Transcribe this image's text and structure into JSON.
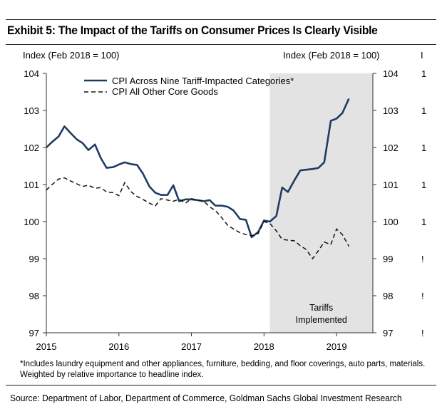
{
  "exhibit_title": "Exhibit 5: The Impact of the Tariffs on Consumer Prices Is Clearly Visible",
  "footnote": "*Includes laundry equipment and other appliances, furniture, bedding, and floor coverings, auto parts, materials. Weighted by relative importance to headline index.",
  "source": "Source: Department of Labor, Department of Commerce, Goldman Sachs Global Investment Research",
  "colors": {
    "series_primary": "#1f3b63",
    "series_secondary": "#111111",
    "shade": "#e3e3e3"
  },
  "chart_data": {
    "type": "line",
    "title": "Exhibit 5: The Impact of the Tariffs on Consumer Prices Is Clearly Visible",
    "ylabel_left": "Index (Feb 2018 = 100)",
    "ylabel_right": "Index (Feb 2018 = 100)",
    "ylabel_right_clipped": "I",
    "xlim": [
      2015.0,
      2019.5
    ],
    "ylim": [
      97,
      104
    ],
    "yticks": [
      97,
      98,
      99,
      100,
      101,
      102,
      103,
      104
    ],
    "yticks_clipped_right": [
      "1",
      "1",
      "1",
      "1",
      "1",
      "!",
      "!",
      "!"
    ],
    "xticks": [
      2015,
      2016,
      2017,
      2018,
      2019
    ],
    "xtick_labels": [
      "2015",
      "2016",
      "2017",
      "2018",
      "2019"
    ],
    "grid": false,
    "legend": "top-left",
    "shaded_region": {
      "x_start": 2018.08,
      "x_end": 2019.5,
      "label_line1": "Tariffs",
      "label_line2": "Implemented"
    },
    "series": [
      {
        "name": "CPI Across Nine Tariff-Impacted Categories*",
        "style": "solid",
        "x": [
          2015.0,
          2015.08,
          2015.17,
          2015.25,
          2015.33,
          2015.42,
          2015.5,
          2015.58,
          2015.67,
          2015.75,
          2015.83,
          2015.92,
          2016.0,
          2016.08,
          2016.17,
          2016.25,
          2016.33,
          2016.42,
          2016.5,
          2016.58,
          2016.67,
          2016.75,
          2016.83,
          2016.92,
          2017.0,
          2017.08,
          2017.17,
          2017.25,
          2017.33,
          2017.42,
          2017.5,
          2017.58,
          2017.67,
          2017.75,
          2017.83,
          2017.92,
          2018.0,
          2018.08,
          2018.17,
          2018.25,
          2018.33,
          2018.42,
          2018.5,
          2018.58,
          2018.67,
          2018.75,
          2018.83,
          2018.92,
          2019.0,
          2019.08,
          2019.17
        ],
        "values": [
          102.0,
          102.15,
          102.3,
          102.57,
          102.4,
          102.22,
          102.12,
          101.93,
          102.08,
          101.72,
          101.45,
          101.47,
          101.54,
          101.6,
          101.55,
          101.53,
          101.3,
          100.95,
          100.78,
          100.72,
          100.72,
          100.98,
          100.55,
          100.6,
          100.6,
          100.58,
          100.55,
          100.58,
          100.43,
          100.43,
          100.4,
          100.3,
          100.07,
          100.05,
          99.58,
          99.72,
          100.03,
          100.0,
          100.15,
          100.92,
          100.8,
          101.12,
          101.38,
          101.4,
          101.42,
          101.45,
          101.6,
          102.72,
          102.78,
          102.93,
          103.32
        ]
      },
      {
        "name": "CPI All Other Core Goods",
        "style": "dashed",
        "x": [
          2015.0,
          2015.08,
          2015.17,
          2015.25,
          2015.33,
          2015.42,
          2015.5,
          2015.58,
          2015.67,
          2015.75,
          2015.83,
          2015.92,
          2016.0,
          2016.08,
          2016.17,
          2016.25,
          2016.33,
          2016.42,
          2016.5,
          2016.58,
          2016.67,
          2016.75,
          2016.83,
          2016.92,
          2017.0,
          2017.08,
          2017.17,
          2017.25,
          2017.33,
          2017.42,
          2017.5,
          2017.58,
          2017.67,
          2017.75,
          2017.83,
          2017.92,
          2018.0,
          2018.08,
          2018.17,
          2018.25,
          2018.33,
          2018.42,
          2018.5,
          2018.58,
          2018.67,
          2018.75,
          2018.83,
          2018.92,
          2019.0,
          2019.08,
          2019.17
        ],
        "values": [
          100.85,
          101.0,
          101.15,
          101.18,
          101.1,
          101.02,
          100.95,
          100.98,
          100.9,
          100.92,
          100.8,
          100.78,
          100.7,
          101.05,
          100.8,
          100.68,
          100.6,
          100.5,
          100.42,
          100.62,
          100.58,
          100.55,
          100.6,
          100.5,
          100.62,
          100.58,
          100.55,
          100.4,
          100.3,
          100.1,
          99.9,
          99.8,
          99.7,
          99.65,
          99.62,
          99.68,
          100.0,
          99.95,
          99.75,
          99.52,
          99.5,
          99.48,
          99.35,
          99.25,
          99.0,
          99.22,
          99.45,
          99.38,
          99.8,
          99.65,
          99.33
        ]
      }
    ]
  }
}
